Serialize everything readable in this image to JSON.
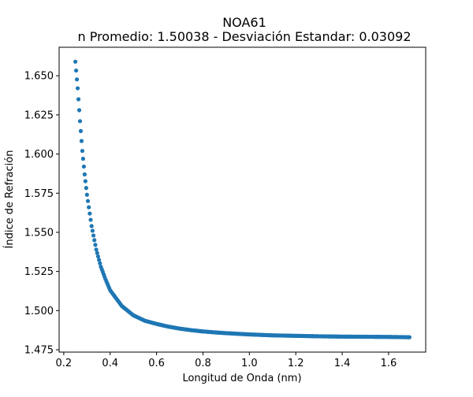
{
  "chart_data": {
    "type": "scatter",
    "title": "NOA61",
    "subtitle": "n Promedio: 1.50038 - Desviación Estandar: 0.03092",
    "xlabel": "Longitud de Onda (nm)",
    "ylabel": "Índice de Refración",
    "xlim": [
      0.18,
      1.76
    ],
    "ylim": [
      1.4735,
      1.6682
    ],
    "xticks": [
      0.2,
      0.4,
      0.6,
      0.8,
      1.0,
      1.2,
      1.4,
      1.6
    ],
    "xtick_labels": [
      "0.2",
      "0.4",
      "0.6",
      "0.8",
      "1.0",
      "1.2",
      "1.4",
      "1.6"
    ],
    "yticks": [
      1.475,
      1.5,
      1.525,
      1.55,
      1.575,
      1.6,
      1.625,
      1.65
    ],
    "ytick_labels": [
      "1.475",
      "1.500",
      "1.525",
      "1.550",
      "1.575",
      "1.600",
      "1.625",
      "1.650"
    ],
    "grid": false,
    "legend": "none",
    "marker_color": "#1f77b4",
    "series": [
      {
        "x": [
          0.25,
          0.26,
          0.27,
          0.28,
          0.29,
          0.3,
          0.32,
          0.34,
          0.36,
          0.38,
          0.4,
          0.45,
          0.5,
          0.55,
          0.6,
          0.65,
          0.7,
          0.75,
          0.8,
          0.85,
          0.9,
          0.95,
          1.0,
          1.05,
          1.1,
          1.2,
          1.3,
          1.4,
          1.5,
          1.6,
          1.69
        ],
        "y": [
          1.659,
          1.642,
          1.621,
          1.602,
          1.587,
          1.574,
          1.554,
          1.539,
          1.528,
          1.52,
          1.513,
          1.503,
          1.497,
          1.4935,
          1.4915,
          1.4898,
          1.4885,
          1.4875,
          1.4867,
          1.4861,
          1.4856,
          1.4852,
          1.4848,
          1.4845,
          1.4842,
          1.4839,
          1.4836,
          1.4834,
          1.4833,
          1.4832,
          1.483
        ]
      }
    ]
  }
}
